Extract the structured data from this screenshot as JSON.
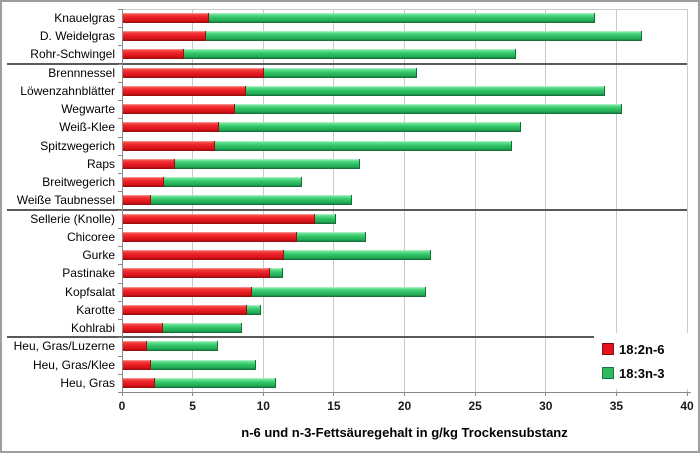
{
  "chart_data": {
    "type": "bar",
    "orientation": "horizontal",
    "stacked": true,
    "xlabel": "n-6 und n-3-Fettsäuregehalt in g/kg Trockensubstanz",
    "xlim": [
      0,
      40
    ],
    "x_ticks": [
      0,
      5,
      10,
      15,
      20,
      25,
      30,
      35,
      40
    ],
    "grid": "vertical-gridlines-on",
    "legend_position": "bottom-right",
    "categories": [
      "Knauelgras",
      "D. Weidelgras",
      "Rohr-Schwingel",
      "Brennnessel",
      "Löwenzahnblätter",
      "Wegwarte",
      "Weiß-Klee",
      "Spitzwegerich",
      "Raps",
      "Breitwegerich",
      "Weiße Taubnessel",
      "Sellerie (Knolle)",
      "Chicoree",
      "Gurke",
      "Pastinake",
      "Kopfsalat",
      "Karotte",
      "Kohlrabi",
      "Heu, Gras/Luzerne",
      "Heu, Gras/Klee",
      "Heu, Gras"
    ],
    "series": [
      {
        "name": "18:2n-6",
        "color": "#ea1c24",
        "values": [
          6.1,
          5.9,
          4.3,
          10.0,
          8.7,
          7.9,
          6.8,
          6.5,
          3.7,
          2.9,
          2.0,
          13.6,
          12.3,
          11.4,
          10.4,
          9.1,
          8.8,
          2.8,
          1.7,
          2.0,
          2.3
        ]
      },
      {
        "name": "18:3n-3",
        "color": "#2fc165",
        "values": [
          27.3,
          30.9,
          23.5,
          10.8,
          25.4,
          27.4,
          21.4,
          21.0,
          13.1,
          9.8,
          14.2,
          1.5,
          4.9,
          10.4,
          0.9,
          12.3,
          1.0,
          5.6,
          5.0,
          7.4,
          8.6
        ]
      }
    ],
    "totals": [
      33.4,
      36.8,
      27.8,
      20.8,
      34.1,
      35.3,
      28.2,
      27.5,
      16.8,
      12.7,
      16.2,
      15.1,
      17.2,
      21.8,
      11.3,
      21.4,
      9.8,
      8.4,
      6.7,
      9.4,
      10.9
    ],
    "group_separators_after": [
      "Rohr-Schwingel",
      "Weiße Taubnessel",
      "Kohlrabi"
    ]
  },
  "colors": {
    "red_series": "#ea1c24",
    "green_series": "#2fc165",
    "gridline": "#c9c9c9",
    "axis": "#8a8a8a",
    "separator": "#5a5a5a",
    "frame_border": "#9e9e9e"
  }
}
